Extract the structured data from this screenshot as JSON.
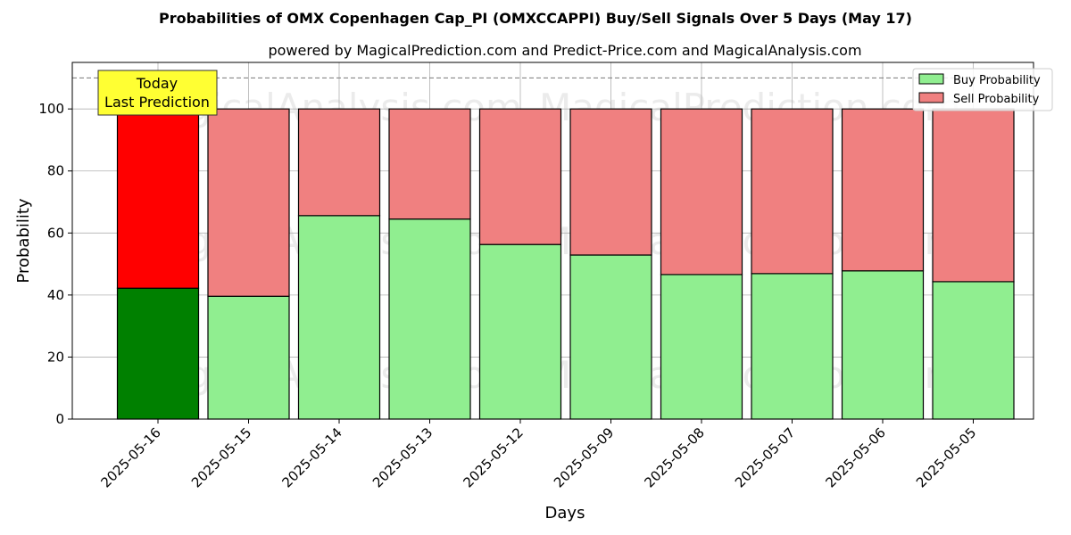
{
  "chart_data": {
    "type": "bar",
    "stacked": true,
    "title": "Probabilities of OMX Copenhagen Cap_PI (OMXCCAPPI) Buy/Sell Signals Over 5 Days (May 17)",
    "subtitle": "powered by MagicalPrediction.com and Predict-Price.com and MagicalAnalysis.com",
    "xlabel": "Days",
    "ylabel": "Probability",
    "ylim": [
      0,
      115
    ],
    "yticks": [
      "0",
      "20",
      "40",
      "60",
      "80",
      "100"
    ],
    "grid": true,
    "legend_position": "top-right",
    "threshold_line": 110,
    "categories": [
      "2025-05-16",
      "2025-05-15",
      "2025-05-14",
      "2025-05-13",
      "2025-05-12",
      "2025-05-09",
      "2025-05-08",
      "2025-05-07",
      "2025-05-06",
      "2025-05-05"
    ],
    "series": [
      {
        "name": "Buy Probability",
        "values": [
          42.2,
          39.6,
          65.6,
          64.5,
          56.3,
          52.9,
          46.6,
          46.9,
          47.8,
          44.3
        ]
      },
      {
        "name": "Sell Probability",
        "values": [
          57.8,
          60.4,
          34.4,
          35.5,
          43.7,
          47.1,
          53.4,
          53.1,
          52.2,
          55.7
        ]
      }
    ],
    "colors": {
      "buy": "#90EE90",
      "sell": "#F08080",
      "buy_highlight": "#008000",
      "sell_highlight": "#FF0000",
      "annotation_bg": "#FFFF33"
    },
    "annotation": {
      "line1": "Today",
      "line2": "Last Prediction"
    },
    "watermark": {
      "text1": "MagicalAnalysis.com",
      "text2": "MagicalPrediction.com"
    }
  }
}
